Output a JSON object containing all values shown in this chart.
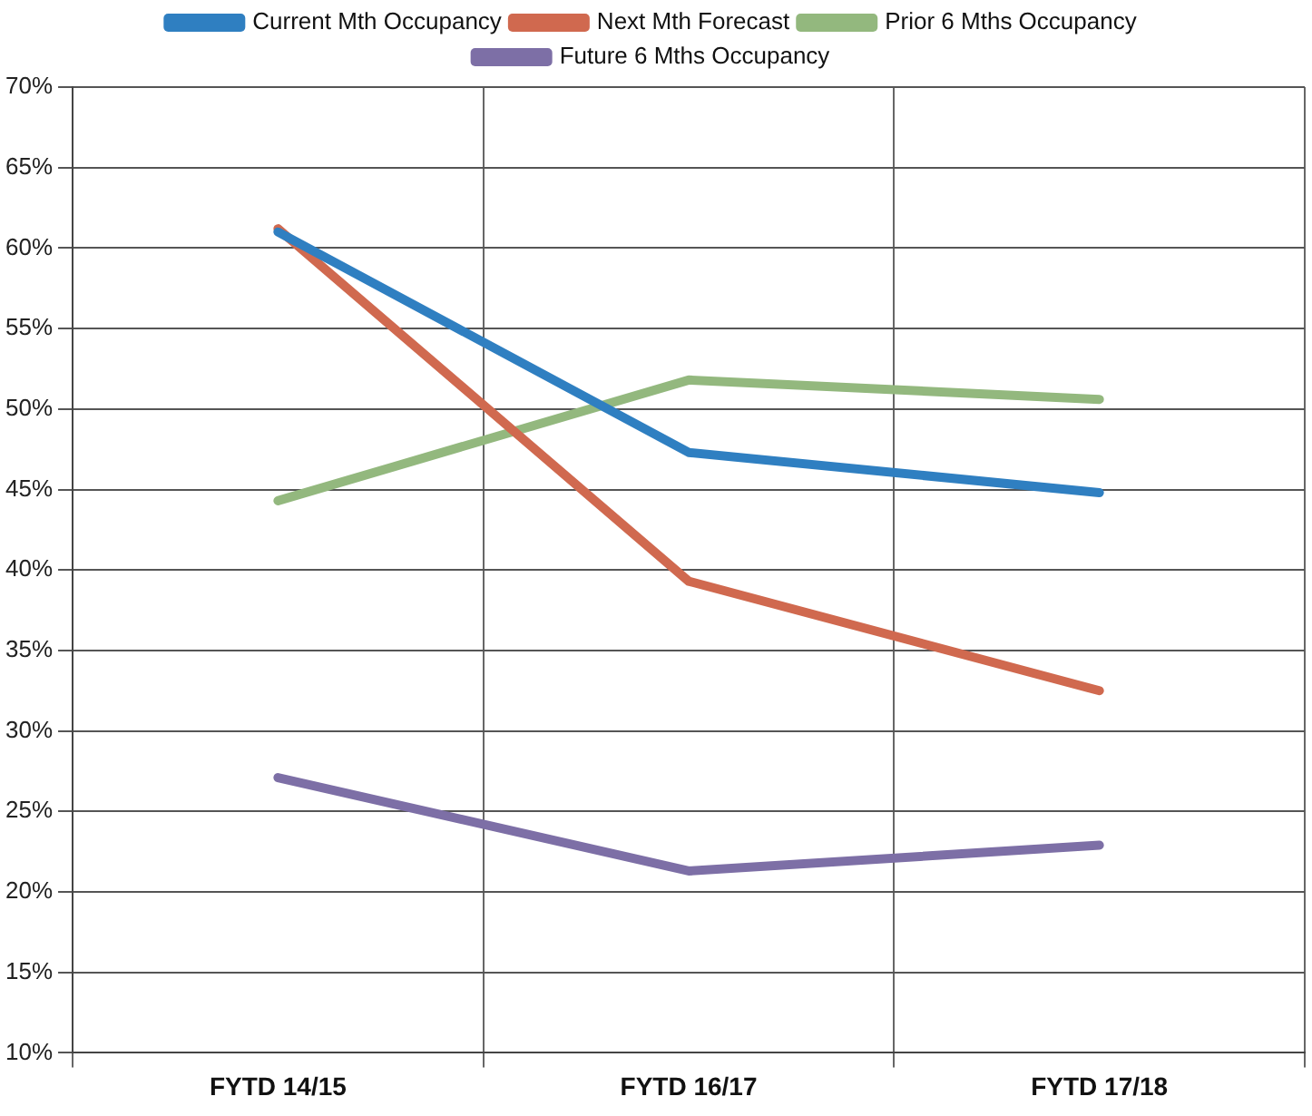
{
  "chart_data": {
    "type": "line",
    "categories": [
      "FYTD 14/15",
      "FYTD 16/17",
      "FYTD 17/18"
    ],
    "series": [
      {
        "name": "Current Mth Occupancy",
        "color": "#2f7fc1",
        "values": [
          61,
          47.3,
          44.8
        ]
      },
      {
        "name": "Next Mth Forecast",
        "color": "#d0694f",
        "values": [
          61.2,
          39.3,
          32.5
        ]
      },
      {
        "name": "Prior 6 Mths Occupancy",
        "color": "#93b87e",
        "values": [
          44.3,
          51.8,
          50.6
        ]
      },
      {
        "name": "Future 6 Mths Occupancy",
        "color": "#7d6fa6",
        "values": [
          27.1,
          21.3,
          22.9
        ]
      }
    ],
    "ylim": [
      10,
      70
    ],
    "yticks": [
      {
        "value": 10,
        "label": "10%"
      },
      {
        "value": 15,
        "label": "15%"
      },
      {
        "value": 20,
        "label": "20%"
      },
      {
        "value": 25,
        "label": "25%"
      },
      {
        "value": 30,
        "label": "30%"
      },
      {
        "value": 35,
        "label": "35%"
      },
      {
        "value": 40,
        "label": "40%"
      },
      {
        "value": 45,
        "label": "45%"
      },
      {
        "value": 50,
        "label": "50%"
      },
      {
        "value": 55,
        "label": "55%"
      },
      {
        "value": 60,
        "label": "60%"
      },
      {
        "value": 65,
        "label": "65%"
      },
      {
        "value": 70,
        "label": "70%"
      }
    ],
    "grid": true,
    "legend": "top",
    "marker": "none",
    "line_style": "solid"
  }
}
